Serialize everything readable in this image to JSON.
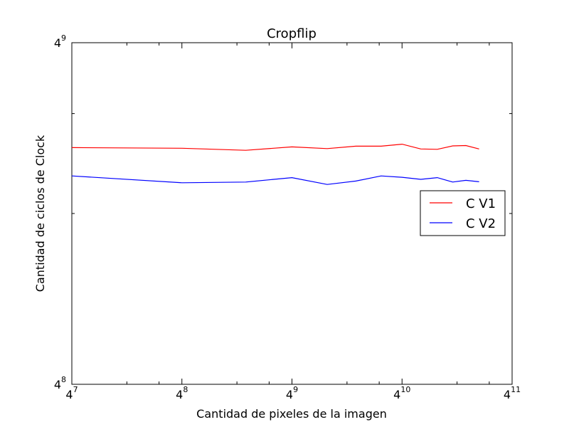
{
  "chart_data": {
    "type": "line",
    "title": "Cropflip",
    "xlabel": "Cantidad de pixeles de la imagen",
    "ylabel": "Cantidad de ciclos de Clock",
    "xscale": "log4",
    "yscale": "log4",
    "xlim_exp": [
      7,
      11
    ],
    "ylim_exp": [
      8,
      9
    ],
    "x_ticks": [
      {
        "base": "4",
        "exp": "7"
      },
      {
        "base": "4",
        "exp": "8"
      },
      {
        "base": "4",
        "exp": "9"
      },
      {
        "base": "4",
        "exp": "10"
      },
      {
        "base": "4",
        "exp": "11"
      }
    ],
    "y_ticks": [
      {
        "base": "4",
        "exp": "8"
      },
      {
        "base": "4",
        "exp": "9"
      }
    ],
    "legend_position": "center-right",
    "grid": false,
    "series": [
      {
        "name": "C V1",
        "color": "#ff0000",
        "x_exp": [
          7.0,
          8.0,
          8.58,
          9.0,
          9.32,
          9.58,
          9.81,
          10.0,
          10.17,
          10.32,
          10.46,
          10.58,
          10.7
        ],
        "y_exp": [
          8.693,
          8.691,
          8.685,
          8.695,
          8.69,
          8.697,
          8.697,
          8.703,
          8.689,
          8.688,
          8.698,
          8.699,
          8.689
        ]
      },
      {
        "name": "C V2",
        "color": "#0000ff",
        "x_exp": [
          7.0,
          8.0,
          8.58,
          9.0,
          9.32,
          9.58,
          9.81,
          10.0,
          10.17,
          10.32,
          10.46,
          10.58,
          10.7
        ],
        "y_exp": [
          8.61,
          8.59,
          8.592,
          8.605,
          8.585,
          8.595,
          8.61,
          8.606,
          8.6,
          8.605,
          8.592,
          8.597,
          8.593
        ]
      }
    ]
  }
}
